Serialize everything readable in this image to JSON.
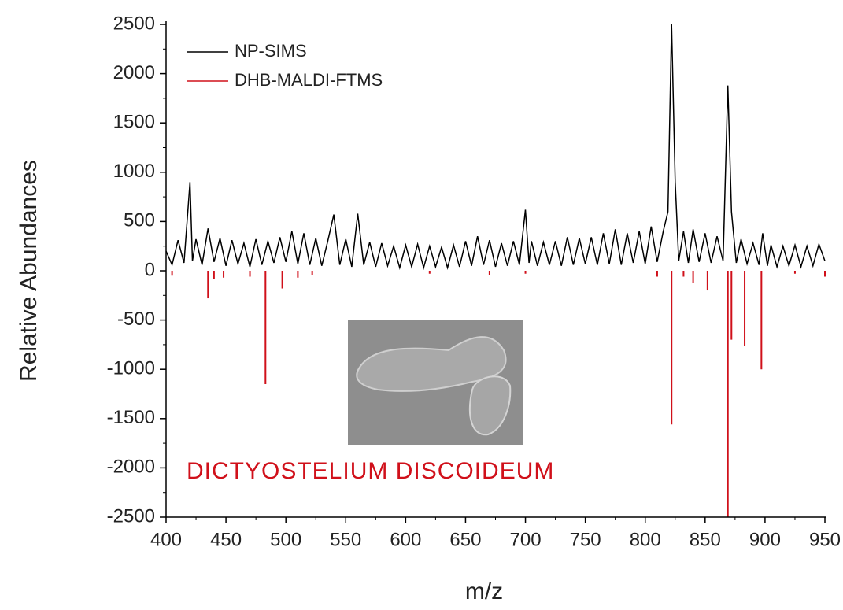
{
  "chart_data": {
    "type": "line",
    "y_label": "Relative Abundances",
    "x_label": "m/z",
    "annotation": "DICTYOSTELIUM DISCOIDEUM",
    "xlim": [
      400,
      950
    ],
    "ylim": [
      -2500,
      2500
    ],
    "xticks": [
      400,
      450,
      500,
      550,
      600,
      650,
      700,
      750,
      800,
      850,
      900,
      950
    ],
    "yticks": [
      -2500,
      -2000,
      -1500,
      -1000,
      -500,
      0,
      500,
      1000,
      1500,
      2000,
      2500
    ],
    "legend": "upper left",
    "series": [
      {
        "name": "NP-SIMS",
        "color": "#000000",
        "style": "line",
        "x": [
          400,
          405,
          410,
          415,
          420,
          422,
          425,
          430,
          435,
          440,
          445,
          450,
          455,
          460,
          465,
          470,
          475,
          480,
          485,
          490,
          495,
          500,
          505,
          510,
          515,
          520,
          525,
          530,
          535,
          540,
          545,
          550,
          555,
          560,
          565,
          570,
          575,
          580,
          585,
          590,
          595,
          600,
          605,
          610,
          615,
          620,
          625,
          630,
          635,
          640,
          645,
          650,
          655,
          660,
          665,
          670,
          675,
          680,
          685,
          690,
          695,
          700,
          703,
          705,
          710,
          715,
          720,
          725,
          730,
          735,
          740,
          745,
          750,
          755,
          760,
          765,
          770,
          775,
          780,
          785,
          790,
          795,
          800,
          805,
          810,
          815,
          819,
          822,
          825,
          828,
          832,
          836,
          840,
          845,
          850,
          855,
          860,
          865,
          869,
          872,
          876,
          880,
          885,
          890,
          895,
          898,
          902,
          905,
          910,
          915,
          920,
          925,
          930,
          935,
          940,
          945,
          950
        ],
        "values": [
          200,
          60,
          310,
          80,
          900,
          100,
          320,
          60,
          430,
          90,
          330,
          50,
          310,
          70,
          280,
          40,
          320,
          60,
          300,
          80,
          340,
          90,
          400,
          70,
          380,
          60,
          330,
          50,
          300,
          570,
          60,
          320,
          40,
          580,
          60,
          290,
          40,
          280,
          50,
          250,
          30,
          260,
          40,
          270,
          30,
          250,
          40,
          240,
          30,
          260,
          40,
          300,
          50,
          350,
          60,
          310,
          40,
          280,
          50,
          300,
          60,
          620,
          80,
          300,
          50,
          290,
          60,
          300,
          50,
          340,
          60,
          330,
          70,
          340,
          60,
          380,
          70,
          420,
          60,
          380,
          80,
          400,
          70,
          450,
          90,
          400,
          600,
          2500,
          900,
          100,
          400,
          80,
          420,
          90,
          380,
          80,
          350,
          100,
          1880,
          600,
          80,
          320,
          70,
          280,
          60,
          380,
          50,
          260,
          40,
          250,
          50,
          260,
          40,
          250,
          50,
          270,
          100
        ]
      },
      {
        "name": "DHB-MALDI-FTMS",
        "color": "#d0101a",
        "style": "stem",
        "x": [
          405,
          435,
          440,
          448,
          470,
          483,
          497,
          510,
          522,
          620,
          670,
          700,
          810,
          822,
          832,
          840,
          852,
          869,
          872,
          883,
          897,
          925,
          950
        ],
        "values": [
          -50,
          -280,
          -80,
          -70,
          -60,
          -1150,
          -180,
          -70,
          -40,
          -30,
          -40,
          -30,
          -60,
          -1560,
          -60,
          -120,
          -200,
          -2500,
          -700,
          -760,
          -1000,
          -30,
          -60
        ]
      }
    ]
  }
}
